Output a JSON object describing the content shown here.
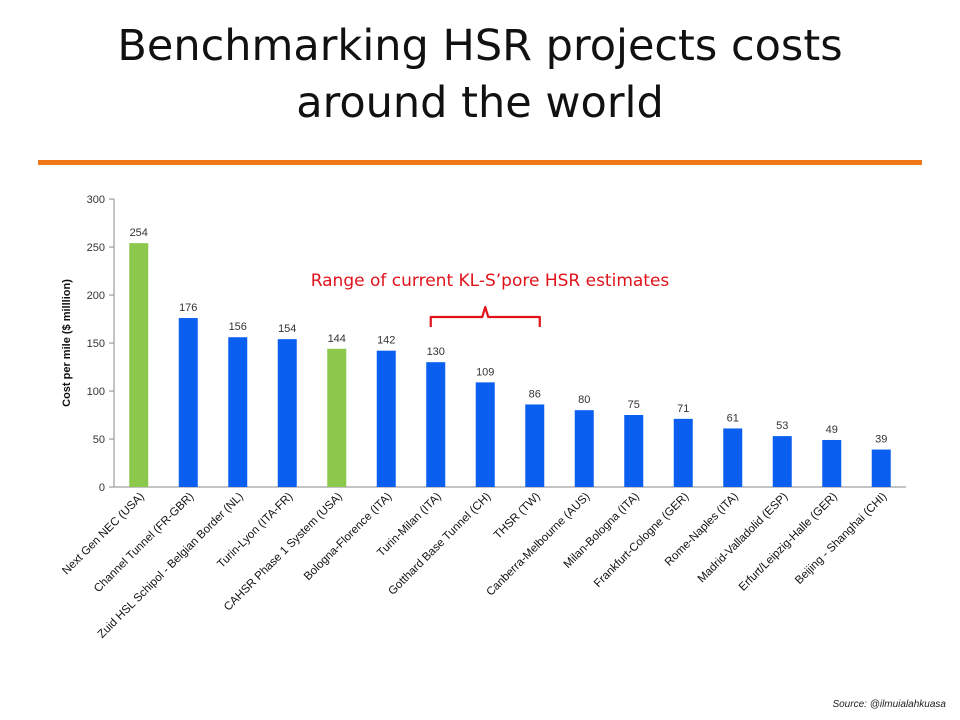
{
  "slide": {
    "title_line1": "Benchmarking HSR projects costs",
    "title_line2": "around the world",
    "source": "Source: @ilmuialahkuasa"
  },
  "colors": {
    "accent_rule": "#f07818",
    "bar_blue": "#0a5ef0",
    "bar_green": "#8cc84b",
    "annotation_red": "#e0131b"
  },
  "chart_data": {
    "type": "bar",
    "ylabel": "Cost per mile ($ milllion)",
    "xlabel": "",
    "ylim": [
      0,
      300
    ],
    "yticks": [
      0,
      50,
      100,
      150,
      200,
      250,
      300
    ],
    "grid": false,
    "categories": [
      "Next Gen NEC (USA)",
      "Channel Tunnel (FR-GBR)",
      "Zuid HSL Schipol - Belgian Border (NL)",
      "Turin-Lyon (ITA-FR)",
      "CAHSR Phase 1 System (USA)",
      "Bologna-Florence (ITA)",
      "Turin-Milan (ITA)",
      "Gotthard Base Tunnel  (CH)",
      "THSR (TW)",
      "Canberra-Melbourne (AUS)",
      "Milan-Bologna (ITA)",
      "Frankfurt-Cologne (GER)",
      "Rome-Naples (ITA)",
      "Madrid-Valladolid (ESP)",
      "Erfurt/Leipzig-Halle (GER)",
      "Beijing -  Shanghai (CHI)"
    ],
    "values": [
      254,
      176,
      156,
      154,
      144,
      142,
      130,
      109,
      86,
      80,
      75,
      71,
      61,
      53,
      49,
      39
    ],
    "value_labels": [
      "254",
      "176",
      "156",
      "154",
      "144",
      "142",
      "130",
      "109",
      "86",
      "80",
      "75",
      "71",
      "61",
      "53",
      "49",
      "39"
    ],
    "bar_colors": [
      "green",
      "blue",
      "blue",
      "blue",
      "green",
      "blue",
      "blue",
      "blue",
      "blue",
      "blue",
      "blue",
      "blue",
      "blue",
      "blue",
      "blue",
      "blue"
    ],
    "annotation": {
      "text": "Range of current KL-S’pore HSR estimates",
      "bracket_from_index": 6,
      "bracket_to_index": 8
    }
  }
}
